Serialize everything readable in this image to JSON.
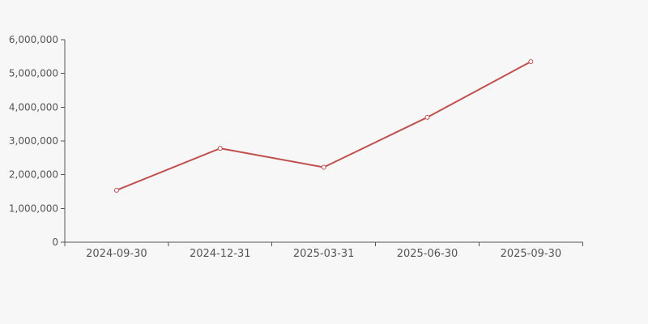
{
  "chart_data": {
    "type": "line",
    "title": "",
    "xlabel": "",
    "ylabel": "",
    "categories": [
      "2024-09-30",
      "2024-12-31",
      "2025-03-31",
      "2025-06-30",
      "2025-09-30"
    ],
    "series": [
      {
        "name": "series-1",
        "values": [
          1540000,
          2780000,
          2220000,
          3700000,
          5350000
        ]
      }
    ],
    "ylim": [
      0,
      6000000
    ],
    "y_ticks": [
      0,
      1000000,
      2000000,
      3000000,
      4000000,
      5000000,
      6000000
    ],
    "y_tick_labels": [
      "0",
      "1,000,000",
      "2,000,000",
      "3,000,000",
      "4,000,000",
      "5,000,000",
      "6,000,000"
    ],
    "grid": false,
    "legend": false,
    "marker": "open-circle",
    "colors": {
      "background": "#f7f7f7",
      "series_line": "#c0504d",
      "marker_fill": "#ffffff",
      "axis": "#555555",
      "tick_label": "#555555"
    }
  }
}
